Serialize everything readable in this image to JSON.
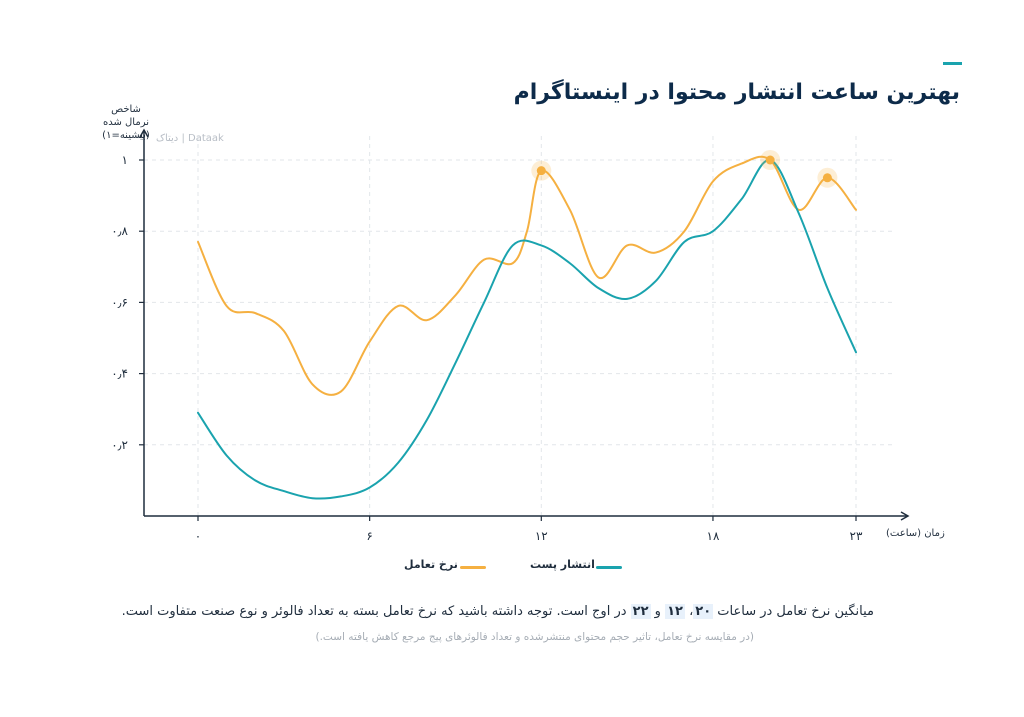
{
  "title": "بهترین ساعت انتشار محتوا در اینستاگرام",
  "accent_color": "#1aa3ae",
  "watermark": "دیتاک | Dataak",
  "footnote": {
    "prefix": "میانگین نرخ تعامل در ساعات ",
    "h1": "۲۰",
    "sep1": "، ",
    "h2": "۱۲",
    "sep2": " و ",
    "h3": "۲۲",
    "suffix": " در اوج است. توجه داشته باشید که نرخ تعامل بسته به تعداد فالوئر و نوع صنعت متفاوت است."
  },
  "subnote": "(در مقایسه نرخ تعامل، تاثیر حجم محتوای منتشرشده و تعداد فالوئرهای پیج مرجع کاهش یافته است.)",
  "chart_data": {
    "type": "line",
    "title": "بهترین ساعت انتشار محتوا در اینستاگرام",
    "ylabel_lines": [
      "شاخص",
      "نرمال شده",
      "(بیشینه=۱)"
    ],
    "xlabel": "زمان (ساعت)",
    "xlim": [
      -1,
      24
    ],
    "ylim": [
      0,
      1.05
    ],
    "x_ticks": [
      0,
      6,
      12,
      18,
      23
    ],
    "x_tick_labels": [
      "۰",
      "۶",
      "۱۲",
      "۱۸",
      "۲۳"
    ],
    "y_ticks": [
      0.2,
      0.4,
      0.6,
      0.8,
      1.0
    ],
    "y_tick_labels": [
      "۰٫۲",
      "۰٫۴",
      "۰٫۶",
      "۰٫۸",
      "۱"
    ],
    "grid": true,
    "legend_position": "bottom-center",
    "series": [
      {
        "name": "نرخ تعامل",
        "color": "#f5b041",
        "x": [
          0,
          1,
          2,
          3,
          4,
          5,
          6,
          7,
          8,
          9,
          10,
          11,
          11.5,
          12,
          13,
          14,
          15,
          16,
          17,
          18,
          19,
          20,
          21,
          22,
          23
        ],
        "y": [
          0.77,
          0.59,
          0.57,
          0.52,
          0.37,
          0.35,
          0.49,
          0.59,
          0.55,
          0.62,
          0.72,
          0.71,
          0.8,
          0.97,
          0.86,
          0.67,
          0.76,
          0.74,
          0.8,
          0.94,
          0.99,
          1.0,
          0.86,
          0.95,
          0.86
        ],
        "highlight_points": [
          [
            12,
            0.97
          ],
          [
            20,
            1.0
          ],
          [
            22,
            0.95
          ]
        ]
      },
      {
        "name": "انتشار پست",
        "color": "#1aa3ae",
        "x": [
          0,
          1,
          2,
          3,
          4,
          5,
          6,
          7,
          8,
          9,
          10,
          11,
          12,
          13,
          14,
          15,
          16,
          17,
          18,
          19,
          20,
          21,
          22,
          23
        ],
        "y": [
          0.29,
          0.17,
          0.1,
          0.07,
          0.05,
          0.055,
          0.08,
          0.15,
          0.27,
          0.43,
          0.6,
          0.76,
          0.76,
          0.71,
          0.64,
          0.61,
          0.66,
          0.77,
          0.8,
          0.89,
          1.0,
          0.85,
          0.64,
          0.46
        ]
      }
    ]
  }
}
